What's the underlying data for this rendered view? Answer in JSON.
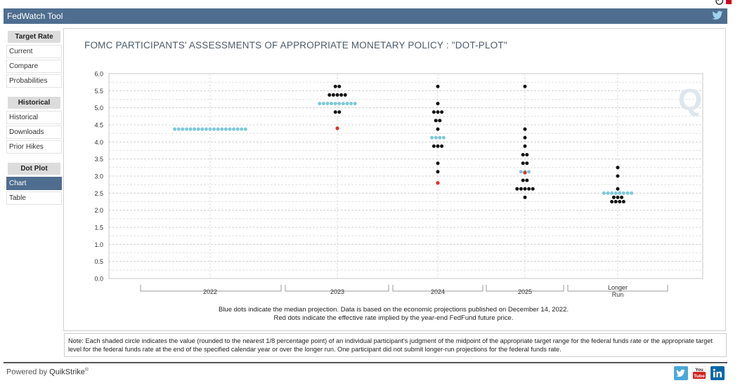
{
  "app_title": "FedWatch Tool",
  "sidebar": {
    "sections": [
      {
        "heading": "Target Rate",
        "items": [
          {
            "label": "Current"
          },
          {
            "label": "Compare"
          },
          {
            "label": "Probabilities"
          }
        ]
      },
      {
        "heading": "Historical",
        "items": [
          {
            "label": "Historical"
          },
          {
            "label": "Downloads"
          },
          {
            "label": "Prior Hikes"
          }
        ]
      },
      {
        "heading": "Dot Plot",
        "items": [
          {
            "label": "Chart",
            "active": true
          },
          {
            "label": "Table"
          }
        ]
      }
    ]
  },
  "chart_data": {
    "type": "scatter",
    "title": "FOMC PARTICIPANTS' ASSESSMENTS OF APPROPRIATE MONETARY POLICY : \"DOT-PLOT\"",
    "ylim": [
      0,
      6
    ],
    "ytick_labels": [
      "0.0",
      "0.5",
      "1.0",
      "1.5",
      "2.0",
      "2.5",
      "3.0",
      "3.5",
      "4.0",
      "4.5",
      "5.0",
      "5.5",
      "6.0"
    ],
    "grid": true,
    "watermark": "Q",
    "categories": [
      {
        "label": "2022",
        "participants": [],
        "median": 4.375,
        "median_count": 19,
        "effective_rate": null
      },
      {
        "label": "2023",
        "participants": [
          {
            "rate": 5.625,
            "count": 2
          },
          {
            "rate": 5.375,
            "count": 5
          },
          {
            "rate": 5.125,
            "count": 10
          },
          {
            "rate": 4.875,
            "count": 2
          }
        ],
        "median": 5.125,
        "median_count": 10,
        "effective_rate": 4.4
      },
      {
        "label": "2024",
        "participants": [
          {
            "rate": 5.625,
            "count": 1
          },
          {
            "rate": 5.125,
            "count": 1
          },
          {
            "rate": 4.875,
            "count": 3
          },
          {
            "rate": 4.625,
            "count": 2
          },
          {
            "rate": 4.375,
            "count": 1
          },
          {
            "rate": 4.125,
            "count": 4
          },
          {
            "rate": 3.875,
            "count": 3
          },
          {
            "rate": 3.375,
            "count": 1
          },
          {
            "rate": 3.125,
            "count": 1
          }
        ],
        "median": 4.125,
        "median_count": 4,
        "effective_rate": 2.8
      },
      {
        "label": "2025",
        "participants": [
          {
            "rate": 5.625,
            "count": 1
          },
          {
            "rate": 4.375,
            "count": 1
          },
          {
            "rate": 4.125,
            "count": 1
          },
          {
            "rate": 3.875,
            "count": 1
          },
          {
            "rate": 3.625,
            "count": 2
          },
          {
            "rate": 3.375,
            "count": 2
          },
          {
            "rate": 3.125,
            "count": 3
          },
          {
            "rate": 2.875,
            "count": 2
          },
          {
            "rate": 2.625,
            "count": 5
          },
          {
            "rate": 2.375,
            "count": 1
          }
        ],
        "median": 3.125,
        "median_count": 3,
        "effective_rate": 3.1
      },
      {
        "label": "Longer Run",
        "participants": [
          {
            "rate": 3.25,
            "count": 1
          },
          {
            "rate": 3.0,
            "count": 1
          },
          {
            "rate": 2.625,
            "count": 1
          },
          {
            "rate": 2.5,
            "count": 8
          },
          {
            "rate": 2.375,
            "count": 3
          },
          {
            "rate": 2.25,
            "count": 4
          }
        ],
        "median": 2.5,
        "median_count": 8,
        "effective_rate": null
      }
    ],
    "colors": {
      "participant": "#111111",
      "median": "#7ec8d8",
      "effective": "#e03030"
    },
    "caption_line1": "Blue dots indicate the median projection. Data is based on the economic projections published on December 14, 2022.",
    "caption_line2": "Red dots indicate the effective rate implied by the year-end FedFund future price."
  },
  "note": "Note: Each shaded circle indicates the value (rounded to the nearest 1/8 percentage point) of an individual participant's judgment of the midpoint of the appropriate target range for the federal funds rate or the appropriate target level for the federal funds rate at the end of the specified calendar year or over the longer run. One participant did not submit longer-run projections for the federal funds rate.",
  "footer": {
    "powered_prefix": "Powered by",
    "brand": "QuikStrike",
    "brand_mark": "®"
  },
  "social": [
    {
      "icon": "twitter-icon"
    },
    {
      "icon": "youtube-icon"
    },
    {
      "icon": "linkedin-icon"
    }
  ]
}
